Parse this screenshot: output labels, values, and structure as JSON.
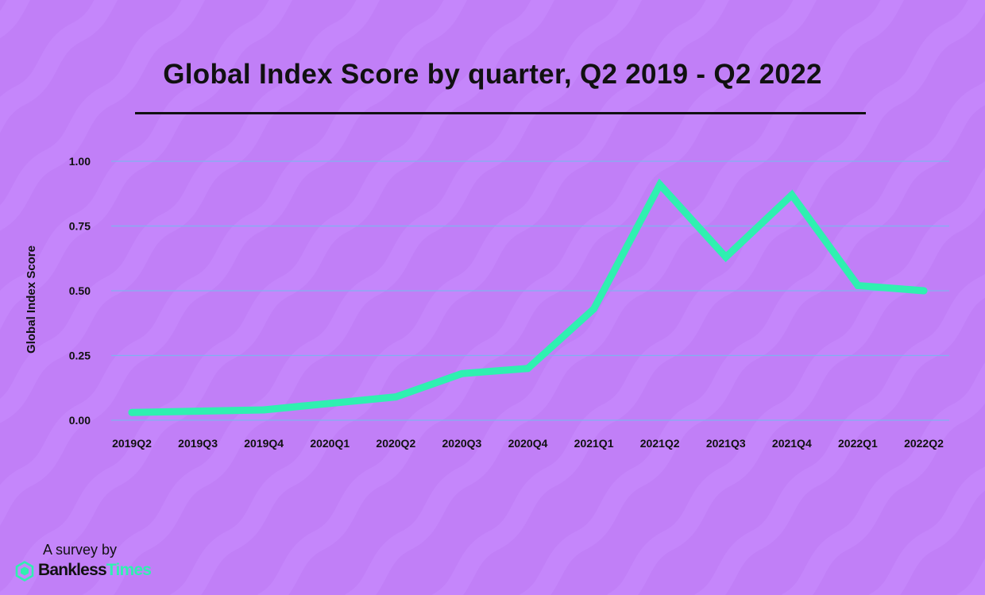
{
  "title": "Global Index Score by quarter, Q2 2019 - Q2 2022",
  "footer": {
    "survey_text": "A survey by",
    "brand_part_1": "Bankless",
    "brand_part_2": "Times",
    "brand_icon": "hexagon-logo-icon"
  },
  "colors": {
    "background": "#c17ff7",
    "line": "#2ff0b0",
    "gridline": "#7fb2f0",
    "text": "#111111"
  },
  "chart_data": {
    "type": "line",
    "title": "Global Index Score by quarter, Q2 2019 - Q2 2022",
    "xlabel": "",
    "ylabel": "Global Index Score",
    "categories": [
      "2019Q2",
      "2019Q3",
      "2019Q4",
      "2020Q1",
      "2020Q2",
      "2020Q3",
      "2020Q4",
      "2021Q1",
      "2021Q2",
      "2021Q3",
      "2021Q4",
      "2022Q1",
      "2022Q2"
    ],
    "series": [
      {
        "values": [
          0.03,
          0.035,
          0.04,
          0.065,
          0.09,
          0.18,
          0.2,
          0.43,
          0.91,
          0.63,
          0.87,
          0.52,
          0.5
        ]
      }
    ],
    "ylim": [
      0,
      1
    ],
    "yticks": [
      "0.00",
      "0.25",
      "0.50",
      "0.75",
      "1.00"
    ],
    "grid": true,
    "legend": "none"
  }
}
